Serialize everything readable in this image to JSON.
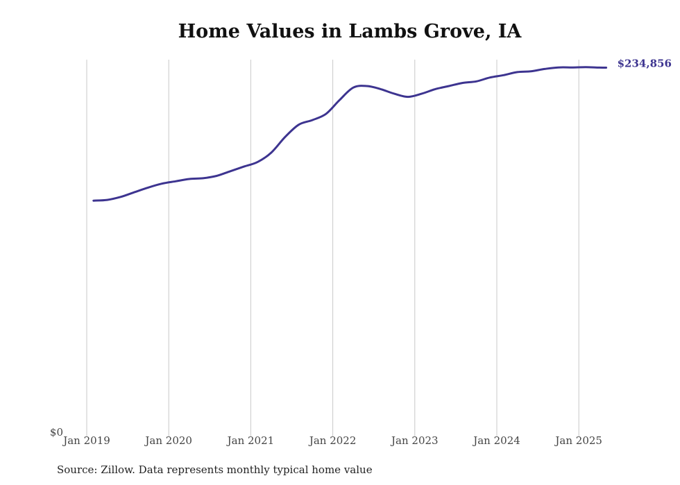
{
  "chart_data": {
    "type": "line",
    "title": "Home Values in Lambs Grove, IA",
    "xlabel": "",
    "ylabel": "",
    "y_tick_labels": [
      "$0"
    ],
    "x_tick_labels": [
      "Jan 2019",
      "Jan 2020",
      "Jan 2021",
      "Jan 2022",
      "Jan 2023",
      "Jan 2024",
      "Jan 2025"
    ],
    "ylim": [
      0,
      240000
    ],
    "grid": "vertical",
    "line_color": "#3d3490",
    "end_label": "$234,856",
    "series": [
      {
        "x": [
          "2019-02",
          "2019-04",
          "2019-06",
          "2019-08",
          "2019-10",
          "2019-12",
          "2020-02",
          "2020-04",
          "2020-06",
          "2020-08",
          "2020-10",
          "2020-12",
          "2021-02",
          "2021-04",
          "2021-06",
          "2021-08",
          "2021-10",
          "2021-12",
          "2022-02",
          "2022-04",
          "2022-06",
          "2022-08",
          "2022-10",
          "2022-12",
          "2023-02",
          "2023-04",
          "2023-06",
          "2023-08",
          "2023-10",
          "2023-12",
          "2024-02",
          "2024-04",
          "2024-06",
          "2024-08",
          "2024-10",
          "2024-12",
          "2025-02",
          "2025-04",
          "2025-05"
        ],
        "values": [
          149000,
          149500,
          151500,
          154500,
          157500,
          160000,
          161500,
          163000,
          163500,
          165000,
          168000,
          171000,
          174000,
          180000,
          190000,
          198000,
          201000,
          205000,
          214000,
          222000,
          223000,
          221000,
          218000,
          216000,
          218000,
          221000,
          223000,
          225000,
          226000,
          228500,
          230000,
          232000,
          232500,
          234000,
          235000,
          235000,
          235200,
          234900,
          234856
        ]
      }
    ]
  },
  "source_note": "Source: Zillow. Data represents monthly typical home value"
}
